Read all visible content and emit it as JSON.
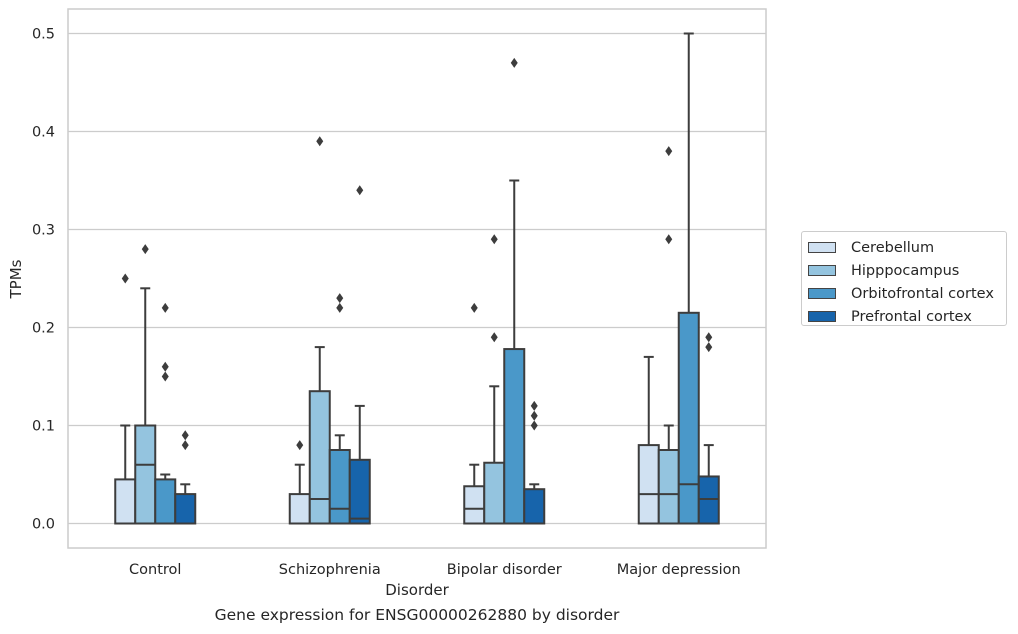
{
  "chart_data": {
    "type": "box",
    "title": "",
    "xlabel": "Disorder",
    "ylabel": "TPMs",
    "ylim": [
      -0.025,
      0.525
    ],
    "yticks": [
      "0.0",
      "0.1",
      "0.2",
      "0.3",
      "0.4",
      "0.5"
    ],
    "categories": [
      "Control",
      "Schizophrenia",
      "Bipolar disorder",
      "Major depression"
    ],
    "grid": true,
    "legend_position": "right",
    "series": [
      {
        "name": "Cerebellum",
        "color": "#d0e1f2",
        "boxes": [
          {
            "q1": 0.0,
            "median": 0.0,
            "q3": 0.045,
            "whisker_low": 0.0,
            "whisker_high": 0.1,
            "outliers": [
              0.25
            ]
          },
          {
            "q1": 0.0,
            "median": 0.0,
            "q3": 0.03,
            "whisker_low": 0.0,
            "whisker_high": 0.06,
            "outliers": [
              0.08
            ]
          },
          {
            "q1": 0.0,
            "median": 0.015,
            "q3": 0.038,
            "whisker_low": 0.0,
            "whisker_high": 0.06,
            "outliers": [
              0.22
            ]
          },
          {
            "q1": 0.0,
            "median": 0.03,
            "q3": 0.08,
            "whisker_low": 0.0,
            "whisker_high": 0.17,
            "outliers": []
          }
        ]
      },
      {
        "name": "Hipppocampus",
        "color": "#94c4df",
        "boxes": [
          {
            "q1": 0.0,
            "median": 0.06,
            "q3": 0.1,
            "whisker_low": 0.0,
            "whisker_high": 0.24,
            "outliers": [
              0.28
            ]
          },
          {
            "q1": 0.0,
            "median": 0.025,
            "q3": 0.135,
            "whisker_low": 0.0,
            "whisker_high": 0.18,
            "outliers": [
              0.39
            ]
          },
          {
            "q1": 0.0,
            "median": 0.0,
            "q3": 0.062,
            "whisker_low": 0.0,
            "whisker_high": 0.14,
            "outliers": [
              0.19,
              0.29
            ]
          },
          {
            "q1": 0.0,
            "median": 0.03,
            "q3": 0.075,
            "whisker_low": 0.0,
            "whisker_high": 0.1,
            "outliers": [
              0.29,
              0.38
            ]
          }
        ]
      },
      {
        "name": "Orbitofrontal cortex",
        "color": "#4a98c9",
        "boxes": [
          {
            "q1": 0.0,
            "median": 0.0,
            "q3": 0.045,
            "whisker_low": 0.0,
            "whisker_high": 0.05,
            "outliers": [
              0.15,
              0.16,
              0.22
            ]
          },
          {
            "q1": 0.0,
            "median": 0.015,
            "q3": 0.075,
            "whisker_low": 0.0,
            "whisker_high": 0.09,
            "outliers": [
              0.22,
              0.23
            ]
          },
          {
            "q1": 0.0,
            "median": 0.0,
            "q3": 0.178,
            "whisker_low": 0.0,
            "whisker_high": 0.35,
            "outliers": [
              0.47
            ]
          },
          {
            "q1": 0.0,
            "median": 0.04,
            "q3": 0.215,
            "whisker_low": 0.0,
            "whisker_high": 0.5,
            "outliers": []
          }
        ]
      },
      {
        "name": "Prefrontal cortex",
        "color": "#1764ab",
        "boxes": [
          {
            "q1": 0.0,
            "median": 0.0,
            "q3": 0.03,
            "whisker_low": 0.0,
            "whisker_high": 0.04,
            "outliers": [
              0.08,
              0.09
            ]
          },
          {
            "q1": 0.0,
            "median": 0.005,
            "q3": 0.065,
            "whisker_low": 0.0,
            "whisker_high": 0.12,
            "outliers": [
              0.34
            ]
          },
          {
            "q1": 0.0,
            "median": 0.0,
            "q3": 0.035,
            "whisker_low": 0.0,
            "whisker_high": 0.04,
            "outliers": [
              0.1,
              0.11,
              0.12
            ]
          },
          {
            "q1": 0.0,
            "median": 0.025,
            "q3": 0.048,
            "whisker_low": 0.0,
            "whisker_high": 0.08,
            "outliers": [
              0.18,
              0.19
            ]
          }
        ]
      }
    ]
  },
  "caption": "Gene expression for ENSG00000262880 by disorder"
}
